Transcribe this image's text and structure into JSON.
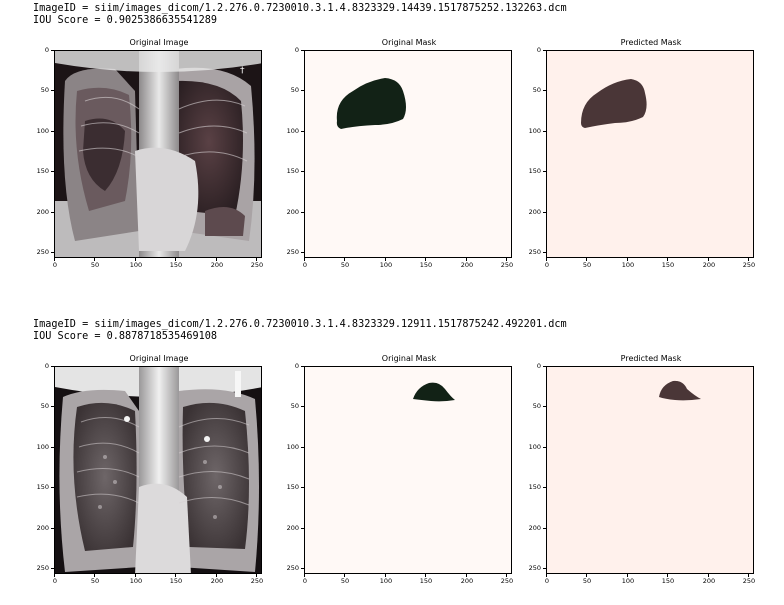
{
  "rows": [
    {
      "image_id": "ImageID = siim/images_dicom/1.2.276.0.7230010.3.1.4.8323329.14439.1517875252.132263.dcm",
      "iou": "IOU Score = 0.9025386635541289",
      "panels": {
        "original_image": {
          "title": "Original Image"
        },
        "original_mask": {
          "title": "Original Mask",
          "bg": "#fff9f6",
          "fill": "#122216"
        },
        "predicted_mask": {
          "title": "Predicted Mask",
          "bg": "#fff1ec",
          "fill": "#4a3637"
        }
      }
    },
    {
      "image_id": "ImageID = siim/images_dicom/1.2.276.0.7230010.3.1.4.8323329.12911.1517875242.492201.dcm",
      "iou": "IOU Score = 0.8878718535469108",
      "panels": {
        "original_image": {
          "title": "Original Image"
        },
        "original_mask": {
          "title": "Original Mask",
          "bg": "#fff9f6",
          "fill": "#122216"
        },
        "predicted_mask": {
          "title": "Predicted Mask",
          "bg": "#fff1ec",
          "fill": "#4a3637"
        }
      }
    }
  ],
  "axes": {
    "y_ticks": [
      "0",
      "50",
      "100",
      "150",
      "200",
      "250"
    ],
    "x_ticks": [
      "0",
      "50",
      "100",
      "150",
      "200",
      "250"
    ]
  }
}
